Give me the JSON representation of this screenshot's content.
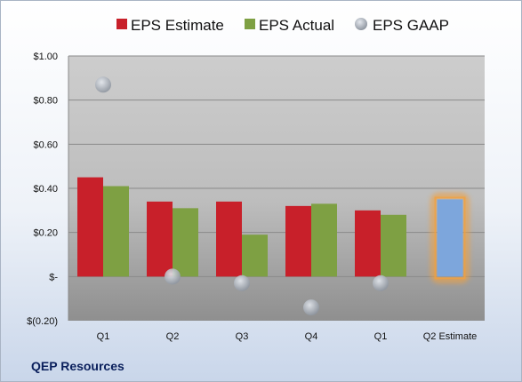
{
  "chart_data": {
    "type": "bar",
    "categories": [
      "Q1",
      "Q2",
      "Q3",
      "Q4",
      "Q1",
      "Q2 Estimate"
    ],
    "series": [
      {
        "name": "EPS Estimate",
        "color": "#c8202a",
        "values": [
          0.45,
          0.34,
          0.34,
          0.32,
          0.3,
          null
        ]
      },
      {
        "name": "EPS Actual",
        "color": "#7ea043",
        "values": [
          0.41,
          0.31,
          0.19,
          0.33,
          0.28,
          null
        ]
      },
      {
        "name": "EPS GAAP",
        "color": "#b0b7c2",
        "type": "scatter",
        "values": [
          0.87,
          0.0,
          -0.03,
          -0.14,
          -0.03,
          null
        ]
      },
      {
        "name": "",
        "color": "#7da6dc",
        "highlight": "#f0a040",
        "values": [
          null,
          null,
          null,
          null,
          null,
          0.35
        ]
      }
    ],
    "ylim": [
      -0.2,
      1.0
    ],
    "yticks": [
      {
        "value": 1.0,
        "label": "$1.00"
      },
      {
        "value": 0.8,
        "label": "$0.80"
      },
      {
        "value": 0.6,
        "label": "$0.60"
      },
      {
        "value": 0.4,
        "label": "$0.40"
      },
      {
        "value": 0.2,
        "label": "$0.20"
      },
      {
        "value": 0.0,
        "label": "$-"
      },
      {
        "value": -0.2,
        "label": "$(0.20)"
      }
    ],
    "grid": true,
    "legend": "top",
    "title": "",
    "xlabel": "",
    "ylabel": ""
  },
  "footer": {
    "company": "QEP Resources"
  }
}
